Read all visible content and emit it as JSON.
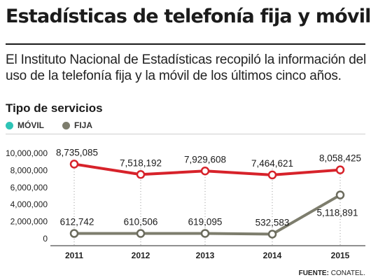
{
  "title": "Estadísticas de telefonía fija y móvil",
  "intro": "El Instituto Nacional de Estadísticas recopiló la información del uso de la telefonía fija y la móvil de los últimos cinco años.",
  "subtitle": "Tipo de servicios",
  "legend": [
    {
      "label": "MÓVIL",
      "color": "#2ec4b6"
    },
    {
      "label": "FIJA",
      "color": "#7d7d6d"
    }
  ],
  "source_label": "FUENTE:",
  "source_value": "CONATEL.",
  "chart_data": {
    "type": "line",
    "categories": [
      "2011",
      "2012",
      "2013",
      "2014",
      "2015"
    ],
    "y_ticks": [
      "10,000,000",
      "8,000,000",
      "6,000,000",
      "4,000,000",
      "2,000,000",
      "0"
    ],
    "ylim": [
      0,
      10000000
    ],
    "grid": false,
    "series": [
      {
        "values": [
          8735085,
          7518192,
          7929608,
          7464621,
          8058425
        ],
        "labels": [
          "8,735,085",
          "7,518,192",
          "7,929,608",
          "7,464,621",
          "8,058,425"
        ],
        "line_color": "#d7222a",
        "marker_stroke": "#d7222a"
      },
      {
        "values": [
          612742,
          610506,
          619095,
          532583,
          5118891
        ],
        "labels": [
          "612,742",
          "610,506",
          "619,095",
          "532,583",
          "5,118,891"
        ],
        "line_color": "#7d7d6d",
        "marker_stroke": "#6a6a5c"
      }
    ]
  }
}
